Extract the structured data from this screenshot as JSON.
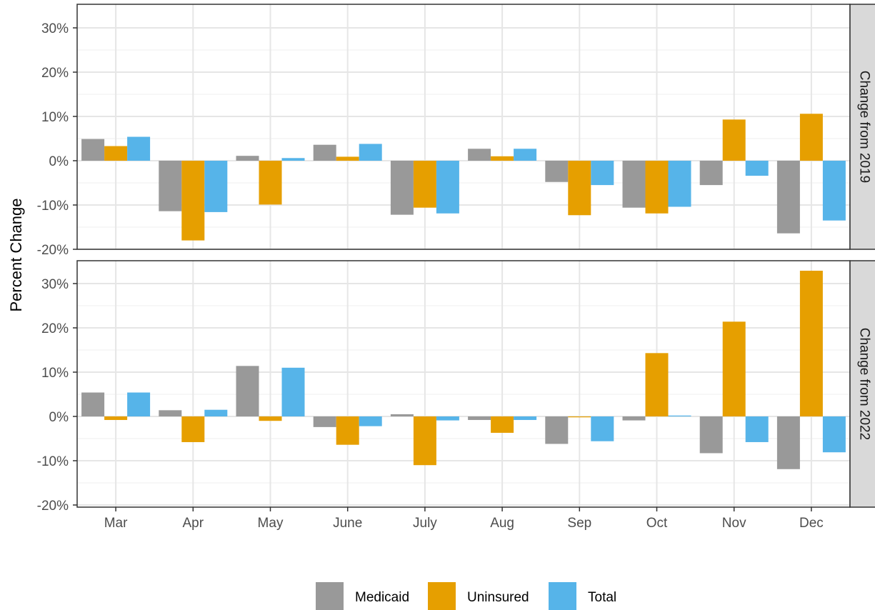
{
  "chart_data": {
    "type": "bar",
    "categories": [
      "Mar",
      "Apr",
      "May",
      "June",
      "July",
      "Aug",
      "Sep",
      "Oct",
      "Nov",
      "Dec"
    ],
    "ylabel": "Percent Change",
    "y_ticks": [
      -20,
      -10,
      0,
      10,
      20,
      30
    ],
    "y_tick_labels": [
      "-20%",
      "-10%",
      "0%",
      "10%",
      "20%",
      "30%"
    ],
    "ylim": [
      -20,
      34
    ],
    "grid": true,
    "legend_position": "bottom",
    "legend": [
      "Medicaid",
      "Uninsured",
      "Total"
    ],
    "colors": {
      "Medicaid": "#999999",
      "Uninsured": "#E69F00",
      "Total": "#56B4E9"
    },
    "panels": [
      {
        "strip_label": "Change from 2019",
        "series": [
          {
            "name": "Medicaid",
            "values": [
              4.9,
              -11.4,
              1.1,
              3.6,
              -12.2,
              2.7,
              -4.8,
              -10.6,
              -5.5,
              -16.4
            ]
          },
          {
            "name": "Uninsured",
            "values": [
              3.3,
              -18.0,
              -9.9,
              0.9,
              -10.6,
              1.0,
              -12.3,
              -11.9,
              9.3,
              10.6
            ]
          },
          {
            "name": "Total",
            "values": [
              5.4,
              -11.6,
              0.6,
              3.8,
              -11.9,
              2.7,
              -5.5,
              -10.4,
              -3.4,
              -13.5
            ]
          }
        ]
      },
      {
        "strip_label": "Change from 2022",
        "series": [
          {
            "name": "Medicaid",
            "values": [
              5.4,
              1.4,
              11.4,
              -2.4,
              0.5,
              -0.8,
              -6.2,
              -0.9,
              -8.3,
              -11.9
            ]
          },
          {
            "name": "Uninsured",
            "values": [
              -0.8,
              -5.8,
              -1.0,
              -6.4,
              -11.0,
              -3.7,
              -0.2,
              14.3,
              21.4,
              32.9
            ]
          },
          {
            "name": "Total",
            "values": [
              5.4,
              1.5,
              11.0,
              -2.2,
              -0.9,
              -0.8,
              -5.6,
              0.2,
              -5.8,
              -8.1
            ]
          }
        ]
      }
    ]
  }
}
